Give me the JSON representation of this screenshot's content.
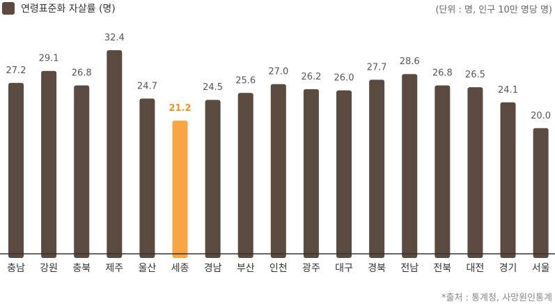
{
  "legend": {
    "label": "연령표준화 자살률 (명)",
    "color": "#5a4a40"
  },
  "unit_note": "(단위 : 명, 인구 10만 명당 명)",
  "source_note": "*출처 : 통계청, 사망원인통계",
  "chart_data": {
    "type": "bar",
    "categories": [
      "충남",
      "강원",
      "충북",
      "제주",
      "울산",
      "세종",
      "경남",
      "부산",
      "인천",
      "광주",
      "대구",
      "경북",
      "전남",
      "전북",
      "대전",
      "경기",
      "서울"
    ],
    "series": [
      {
        "name": "연령표준화 자살률 (명)",
        "values": [
          27.2,
          29.1,
          26.8,
          32.4,
          24.7,
          21.2,
          24.5,
          25.6,
          27.0,
          26.2,
          26.0,
          27.7,
          28.6,
          26.8,
          26.5,
          24.1,
          20.0
        ]
      }
    ],
    "highlight": "세종",
    "ylim": [
      0,
      35
    ],
    "grid": false,
    "colors": {
      "bar": "#5a4a40",
      "highlight": "#f7a545",
      "highlight_label": "#f0932b",
      "baseline": "#333333"
    }
  }
}
